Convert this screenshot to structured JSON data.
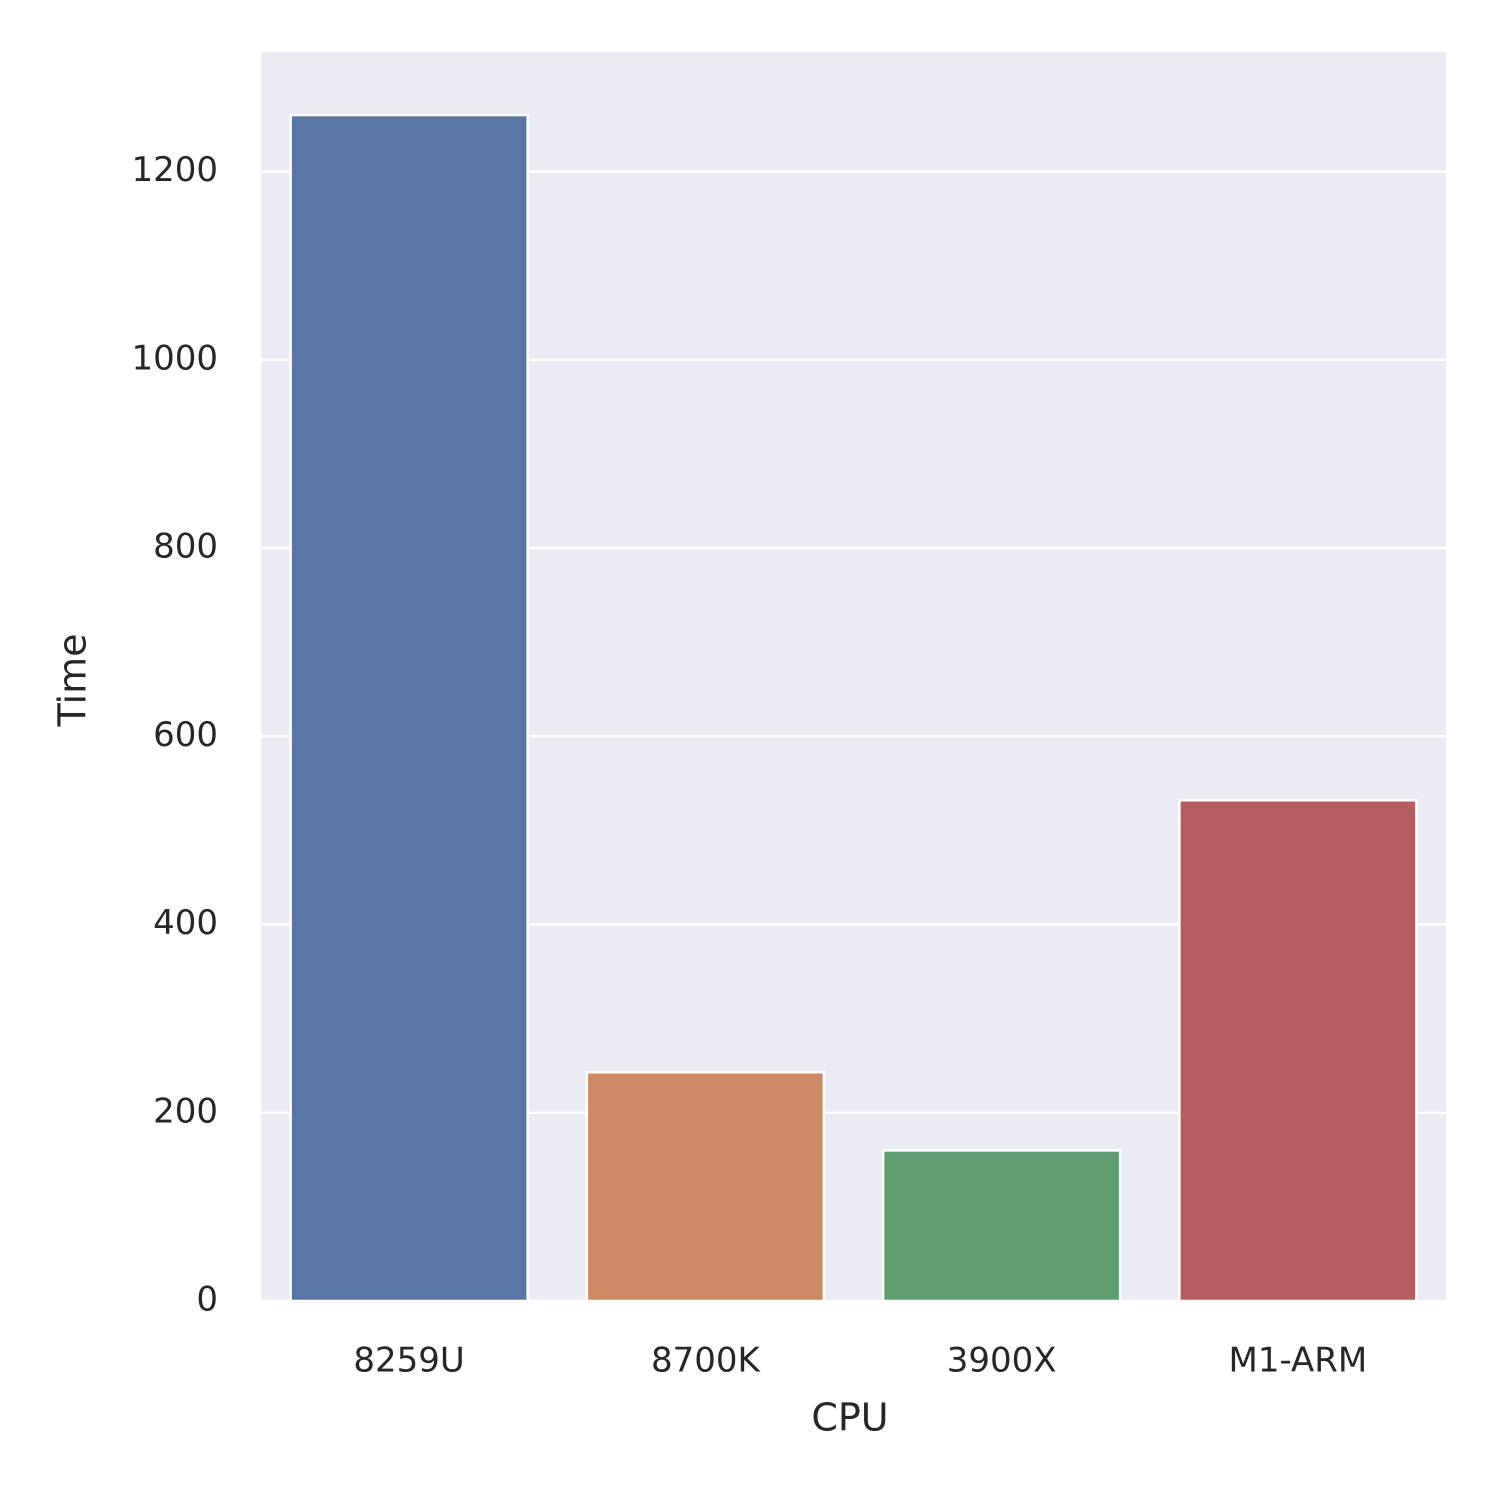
{
  "chart_data": {
    "type": "bar",
    "x_label": "CPU",
    "y_label": "Time",
    "categories": [
      "8259U",
      "8700K",
      "3900X",
      "M1-ARM"
    ],
    "values": [
      1260,
      243,
      160,
      532
    ],
    "colors": [
      "#5975a4",
      "#cc8963",
      "#5f9e6e",
      "#b55d60"
    ],
    "ylim": [
      0,
      1327
    ],
    "yticks": [
      0,
      200,
      400,
      600,
      800,
      1000,
      1200
    ],
    "grid": true
  }
}
